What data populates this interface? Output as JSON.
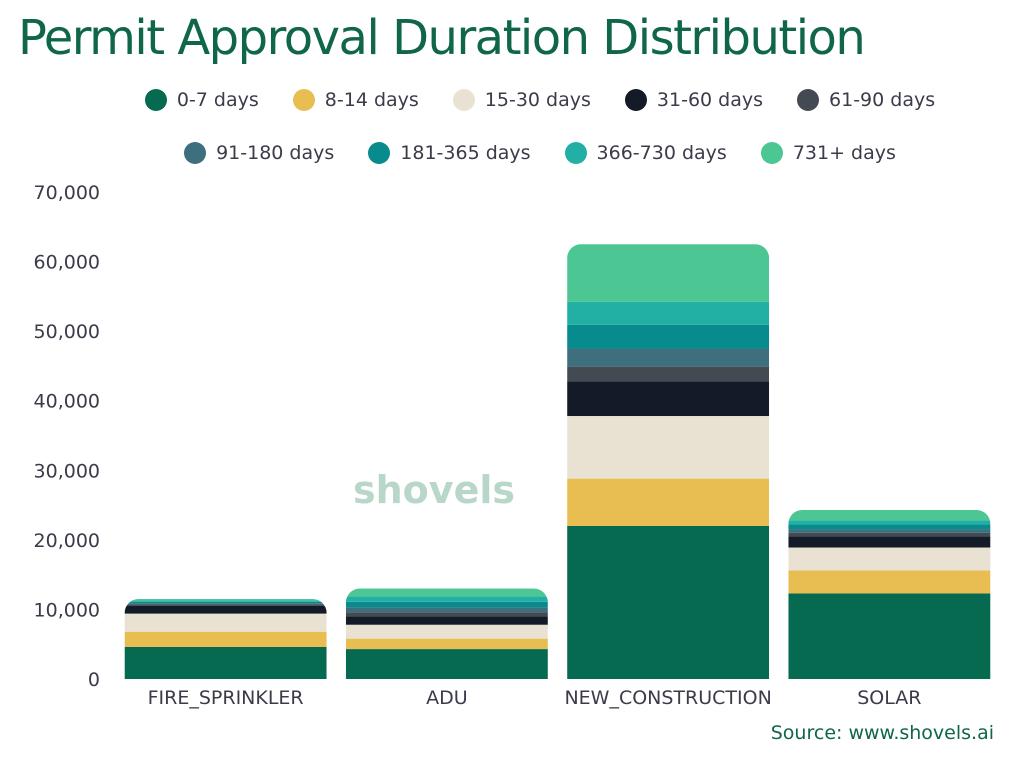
{
  "chart_data": {
    "type": "bar",
    "stacked": true,
    "title": "Permit Approval Duration Distribution",
    "xlabel": "",
    "ylabel": "",
    "ylim": [
      0,
      70000
    ],
    "yticks": [
      0,
      10000,
      20000,
      30000,
      40000,
      50000,
      60000,
      70000
    ],
    "ytick_labels": [
      "0",
      "10,000",
      "20,000",
      "30,000",
      "40,000",
      "50,000",
      "60,000",
      "70,000"
    ],
    "grid": false,
    "legend_position": "top",
    "categories": [
      "FIRE_SPRINKLER",
      "ADU",
      "NEW_CONSTRUCTION",
      "SOLAR"
    ],
    "series": [
      {
        "name": "0-7 days",
        "color": "#066a50",
        "values": [
          4600,
          4300,
          22000,
          12300
        ]
      },
      {
        "name": "8-14 days",
        "color": "#e8bd52",
        "values": [
          2200,
          1500,
          6800,
          3300
        ]
      },
      {
        "name": "15-30 days",
        "color": "#e9e2d2",
        "values": [
          2600,
          2000,
          9000,
          3300
        ]
      },
      {
        "name": "31-60 days",
        "color": "#131a28",
        "values": [
          1100,
          1200,
          5000,
          1600
        ]
      },
      {
        "name": "61-90 days",
        "color": "#434a52",
        "values": [
          200,
          600,
          2100,
          500
        ]
      },
      {
        "name": "91-180 days",
        "color": "#3d6f7e",
        "values": [
          200,
          700,
          2600,
          500
        ]
      },
      {
        "name": "181-365 days",
        "color": "#078b8d",
        "values": [
          200,
          800,
          3400,
          700
        ]
      },
      {
        "name": "366-730 days",
        "color": "#22b0a4",
        "values": [
          200,
          800,
          3300,
          600
        ]
      },
      {
        "name": "731+ days",
        "color": "#4cc793",
        "values": [
          200,
          1100,
          8300,
          1500
        ]
      }
    ]
  },
  "watermark": "shovels",
  "source": "Source: www.shovels.ai"
}
